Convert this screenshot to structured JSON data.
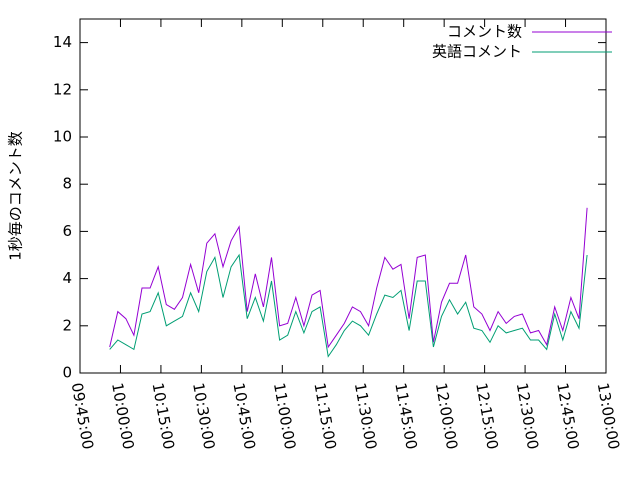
{
  "chart_data": {
    "type": "line",
    "ylabel": "1秒毎のコメント数",
    "x": [
      "09:56:00",
      "09:59:00",
      "10:02:00",
      "10:05:00",
      "10:08:00",
      "10:11:00",
      "10:14:00",
      "10:17:00",
      "10:20:00",
      "10:23:00",
      "10:26:00",
      "10:29:00",
      "10:32:00",
      "10:35:00",
      "10:38:00",
      "10:41:00",
      "10:44:00",
      "10:47:00",
      "10:50:00",
      "10:53:00",
      "10:56:00",
      "10:59:00",
      "11:02:00",
      "11:05:00",
      "11:08:00",
      "11:11:00",
      "11:14:00",
      "11:17:00",
      "11:20:00",
      "11:23:00",
      "11:26:00",
      "11:29:00",
      "11:32:00",
      "11:35:00",
      "11:38:00",
      "11:41:00",
      "11:44:00",
      "11:47:00",
      "11:50:00",
      "11:53:00",
      "11:56:00",
      "11:59:00",
      "12:02:00",
      "12:05:00",
      "12:08:00",
      "12:11:00",
      "12:14:00",
      "12:17:00",
      "12:20:00",
      "12:23:00",
      "12:26:00",
      "12:29:00",
      "12:32:00",
      "12:35:00",
      "12:38:00",
      "12:41:00",
      "12:44:00",
      "12:47:00",
      "12:50:00",
      "12:53:00"
    ],
    "series": [
      {
        "name": "コメント数",
        "color": "#9400d3",
        "values": [
          1.1,
          2.6,
          2.3,
          1.6,
          3.6,
          3.6,
          4.5,
          2.9,
          2.7,
          3.2,
          4.6,
          3.4,
          5.5,
          5.9,
          4.5,
          5.6,
          6.2,
          2.6,
          4.2,
          2.8,
          4.9,
          2.0,
          2.1,
          3.2,
          2.0,
          3.3,
          3.5,
          1.1,
          1.6,
          2.1,
          2.8,
          2.6,
          2.0,
          3.6,
          4.9,
          4.4,
          4.6,
          2.3,
          4.9,
          5.0,
          1.3,
          3.0,
          3.8,
          3.8,
          5.0,
          2.8,
          2.5,
          1.8,
          2.6,
          2.1,
          2.4,
          2.5,
          1.7,
          1.8,
          1.2,
          2.8,
          1.8,
          3.2,
          2.3,
          7.0
        ]
      },
      {
        "name": "英語コメント",
        "color": "#009e73",
        "values": [
          1.0,
          1.4,
          1.2,
          1.0,
          2.5,
          2.6,
          3.4,
          2.0,
          2.2,
          2.4,
          3.4,
          2.6,
          4.3,
          4.9,
          3.2,
          4.5,
          5.0,
          2.3,
          3.2,
          2.2,
          3.9,
          1.4,
          1.6,
          2.6,
          1.7,
          2.6,
          2.8,
          0.7,
          1.2,
          1.8,
          2.2,
          2.0,
          1.6,
          2.5,
          3.3,
          3.2,
          3.5,
          1.8,
          3.9,
          3.9,
          1.1,
          2.4,
          3.1,
          2.5,
          3.0,
          1.9,
          1.8,
          1.3,
          2.0,
          1.7,
          1.8,
          1.9,
          1.4,
          1.4,
          1.0,
          2.5,
          1.4,
          2.6,
          1.9,
          5.0
        ]
      }
    ],
    "xlim": [
      "09:45:00",
      "13:00:00"
    ],
    "xticks": [
      "09:45:00",
      "10:00:00",
      "10:15:00",
      "10:30:00",
      "10:45:00",
      "11:00:00",
      "11:15:00",
      "11:30:00",
      "11:45:00",
      "12:00:00",
      "12:15:00",
      "12:30:00",
      "12:45:00",
      "13:00:00"
    ],
    "ylim": [
      0,
      15
    ],
    "yticks": [
      0,
      2,
      4,
      6,
      8,
      10,
      12,
      14
    ],
    "legend": "top-right"
  }
}
